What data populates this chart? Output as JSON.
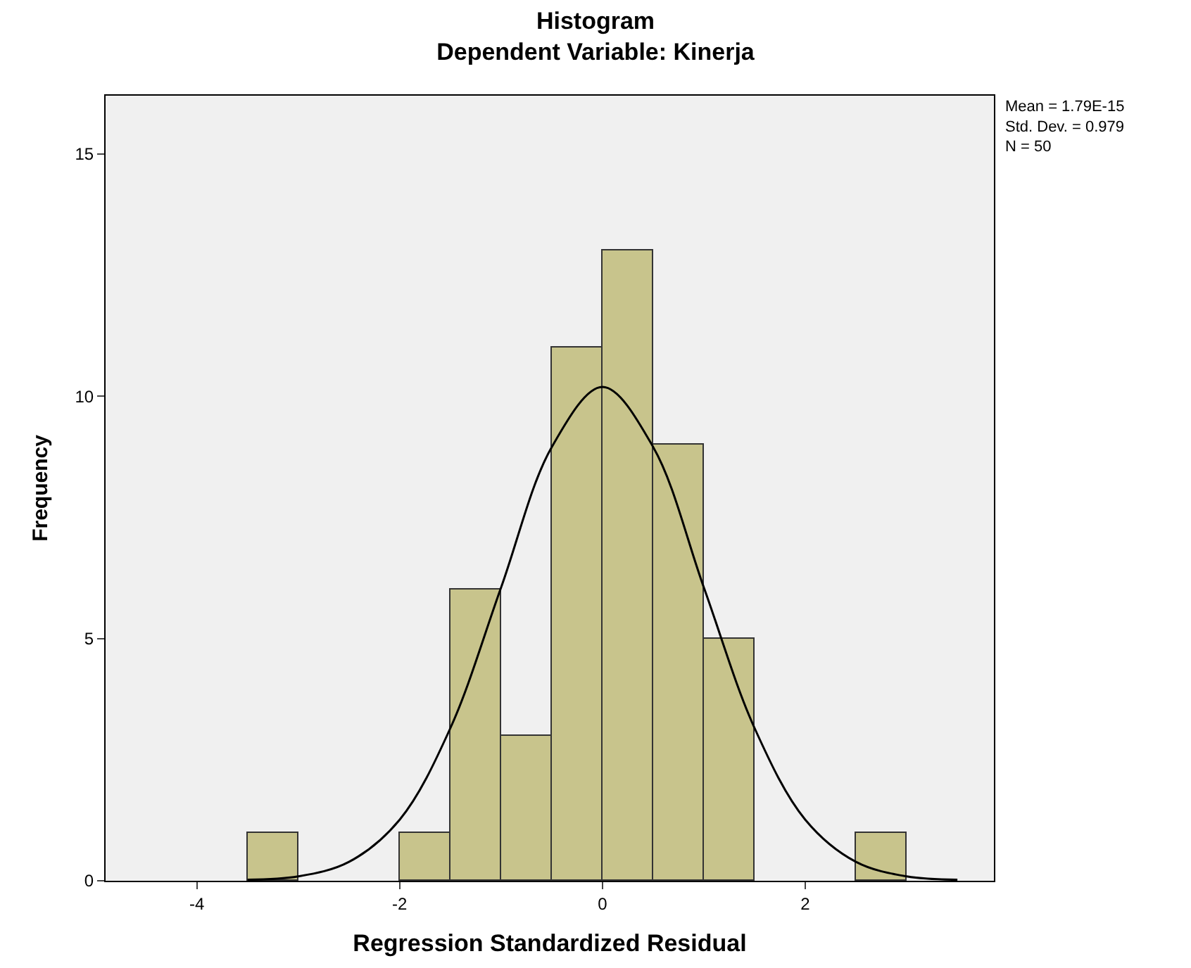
{
  "chart_data": {
    "type": "histogram",
    "title": "Histogram",
    "subtitle": "Dependent Variable: Kinerja",
    "xlabel": "Regression Standardized Residual",
    "ylabel": "Frequency",
    "bins": [
      -3.5,
      -3.0,
      -2.5,
      -2.0,
      -1.5,
      -1.0,
      -0.5,
      0.0,
      0.5,
      1.0,
      1.5,
      2.0,
      2.5,
      3.0
    ],
    "values": [
      1,
      0,
      0,
      1,
      6,
      3,
      11,
      13,
      9,
      5,
      0,
      0,
      1
    ],
    "color": "#c8c48c",
    "series": [
      {
        "type": "line",
        "color": "#000000",
        "x": [
          -3.5,
          -3,
          -2.5,
          -2,
          -1.5,
          -1,
          -0.5,
          0,
          0.5,
          1,
          1.5,
          2,
          2.5,
          3,
          3.5
        ],
        "values": [
          0.02,
          0.09,
          0.39,
          1.26,
          3.15,
          6.05,
          8.95,
          10.19,
          8.95,
          6.05,
          3.15,
          1.26,
          0.39,
          0.09,
          0.02
        ]
      }
    ],
    "xlim": [
      -4.9,
      3.86
    ],
    "xticks": [
      -4,
      -2,
      0,
      2
    ],
    "ylim": [
      0,
      16.2
    ],
    "yticks": [
      0,
      5,
      10,
      15
    ],
    "grid": false,
    "annotations": [
      "Mean = 1.79E-15",
      "Std. Dev. = 0.979",
      "N = 50"
    ]
  }
}
